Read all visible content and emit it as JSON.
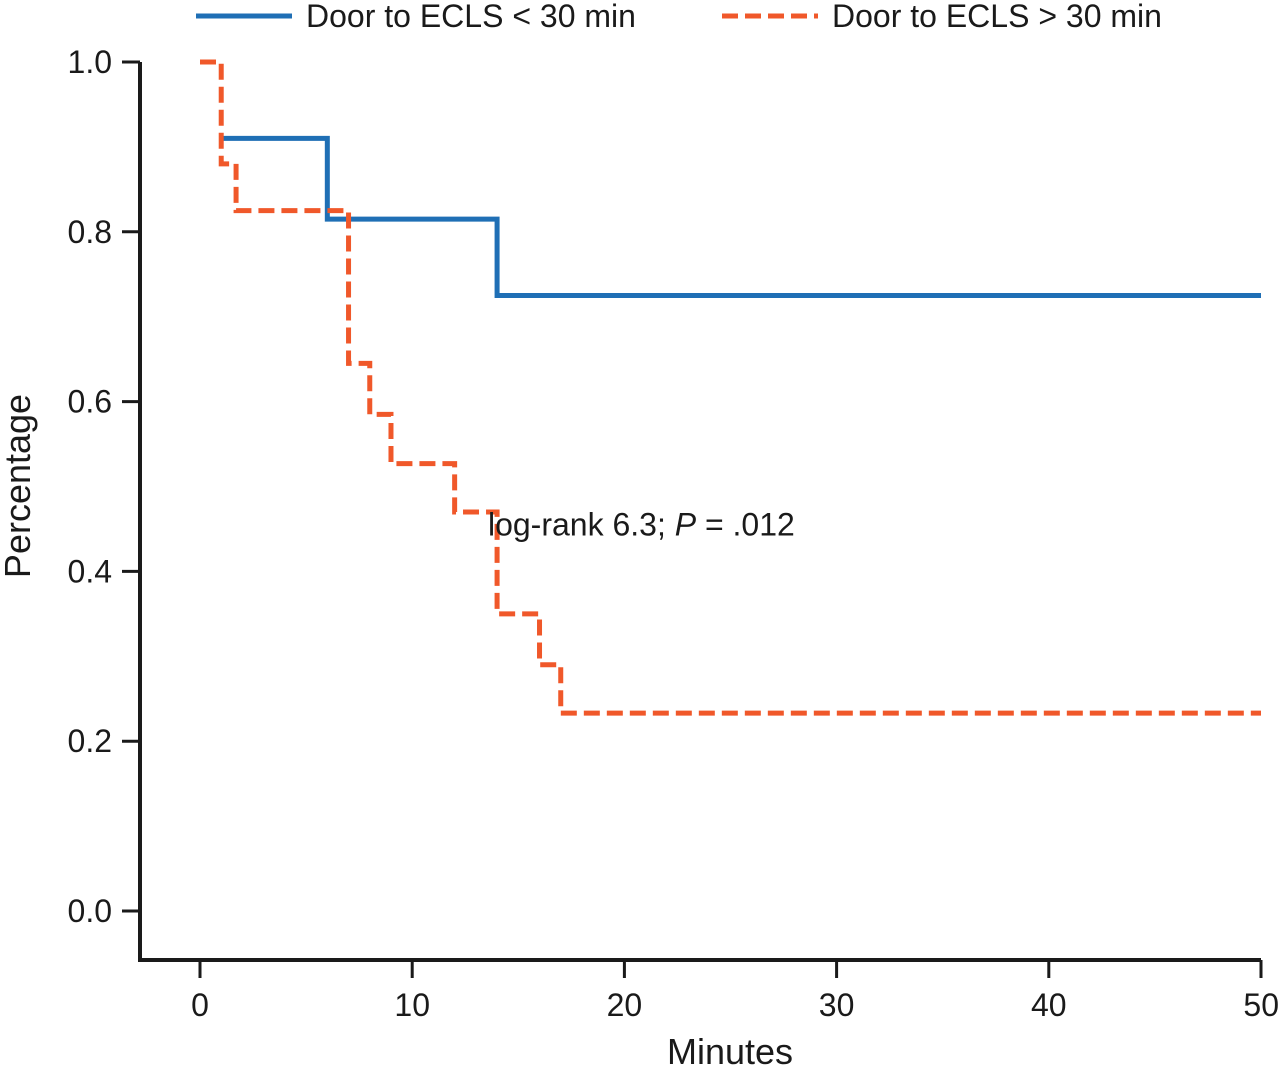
{
  "chart_data": {
    "type": "line",
    "subtype": "kaplan-meier-step",
    "title": "",
    "xlabel": "Minutes",
    "ylabel": "Percentage",
    "xlim": [
      0,
      50
    ],
    "ylim": [
      0.0,
      1.0
    ],
    "x_ticks": [
      0,
      10,
      20,
      30,
      40,
      50
    ],
    "x_tick_labels": [
      "0",
      "10",
      "20",
      "30",
      "40",
      "50"
    ],
    "y_ticks": [
      0.0,
      0.2,
      0.4,
      0.6,
      0.8,
      1.0
    ],
    "y_tick_labels": [
      "0.0",
      "0.2",
      "0.4",
      "0.6",
      "0.8",
      "1.0"
    ],
    "grid": false,
    "legend_position": "top",
    "series": [
      {
        "name": "Door to ECLS < 30 min",
        "color": "#1f6fb5",
        "line_style": "solid",
        "steps": [
          {
            "x": 1,
            "y": 0.91
          },
          {
            "x": 6,
            "y": 0.815
          },
          {
            "x": 14,
            "y": 0.725
          },
          {
            "x": 50,
            "y": 0.725
          }
        ]
      },
      {
        "name": "Door to ECLS > 30 min",
        "color": "#f0582a",
        "line_style": "dashed",
        "steps": [
          {
            "x": 0,
            "y": 1.0
          },
          {
            "x": 1,
            "y": 0.88
          },
          {
            "x": 1.7,
            "y": 0.825
          },
          {
            "x": 7,
            "y": 0.645
          },
          {
            "x": 8,
            "y": 0.585
          },
          {
            "x": 9,
            "y": 0.527
          },
          {
            "x": 12,
            "y": 0.47
          },
          {
            "x": 14,
            "y": 0.35
          },
          {
            "x": 16,
            "y": 0.29
          },
          {
            "x": 17,
            "y": 0.233
          },
          {
            "x": 50,
            "y": 0.233
          }
        ]
      }
    ],
    "annotations": [
      {
        "prefix": "log-rank 6.3; ",
        "italic": "P",
        "suffix": " = .012",
        "x": 18,
        "y": 0.455
      }
    ]
  }
}
